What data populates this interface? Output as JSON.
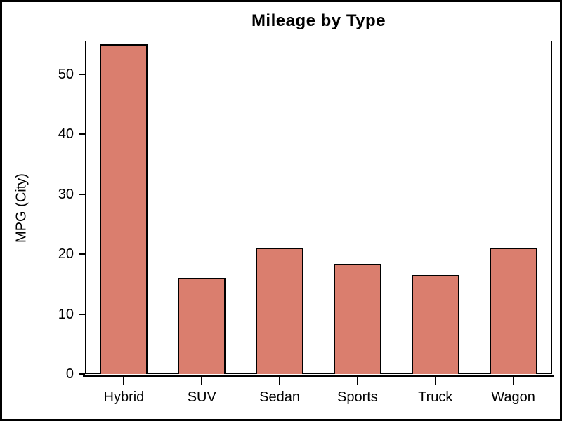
{
  "window": {
    "background": "#ffffff",
    "border_color": "#000000"
  },
  "chart_data": {
    "type": "bar",
    "title": "Mileage by Type",
    "categories": [
      "Hybrid",
      "SUV",
      "Sedan",
      "Sports",
      "Truck",
      "Wagon"
    ],
    "values": [
      55.0,
      16.1,
      21.1,
      18.4,
      16.5,
      21.1
    ],
    "xlabel": "",
    "ylabel": "MPG (City)",
    "ylim": [
      0,
      55.6
    ],
    "yticks": [
      0,
      10,
      20,
      30,
      40,
      50
    ],
    "grid": false,
    "legend": false,
    "bar_fill_color": "#DA7E6E",
    "bar_border_color": "#000000",
    "text_color": "#000000",
    "frame_color": "#000000"
  }
}
